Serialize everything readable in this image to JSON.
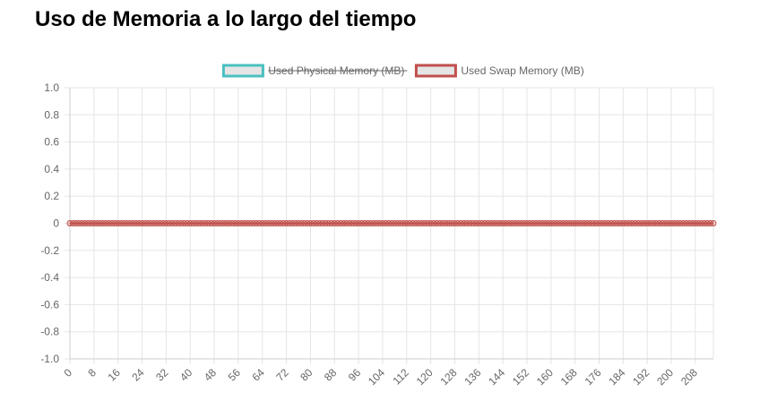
{
  "page": {
    "title": "Uso de Memoria a lo largo del tiempo"
  },
  "chart_data": {
    "type": "line",
    "title": "",
    "xlabel": "",
    "ylabel": "",
    "x": {
      "min": 0,
      "max": 214,
      "step": 1,
      "tick_step": 8
    },
    "ylim": [
      -1.0,
      1.0
    ],
    "y_ticks": [
      "1.0",
      "0.8",
      "0.6",
      "0.4",
      "0.2",
      "0",
      "-0.2",
      "-0.4",
      "-0.6",
      "-0.8",
      "-1.0"
    ],
    "y_tick_values": [
      1.0,
      0.8,
      0.6,
      0.4,
      0.2,
      0,
      -0.2,
      -0.4,
      -0.6,
      -0.8,
      -1.0
    ],
    "grid": true,
    "legend_position": "top",
    "series": [
      {
        "name": "Used Physical Memory (MB)",
        "color": "#4bc0c0",
        "hidden": true,
        "constant_value": 0
      },
      {
        "name": "Used Swap Memory (MB)",
        "color": "#c0504d",
        "hidden": false,
        "constant_value": 0
      }
    ]
  }
}
